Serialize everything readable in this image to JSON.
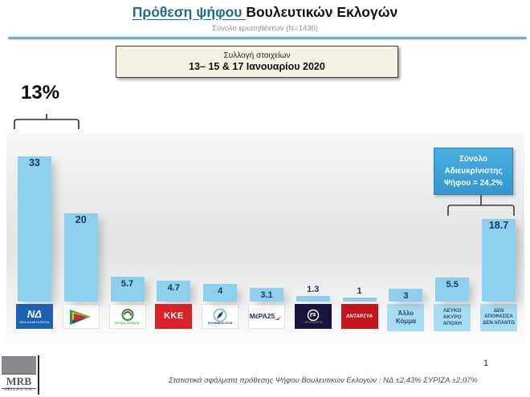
{
  "header": {
    "title_highlight": "Πρόθεση ψήφου ",
    "title_rest": "Βουλευτικών Εκλογών",
    "subtitle": "Σύνολο ερωτηθέντων (N=1436)"
  },
  "collection_box": {
    "line1": "Συλλογή στοιχείων",
    "line2": "13– 15 & 17 Ιανουαρίου 2020"
  },
  "annotations": {
    "lead_gap_label": "13%",
    "undecided_line1": "Σύνολο",
    "undecided_line2": "Αδιευκρίνιστης",
    "undecided_line3": "Ψήφου = 24,2%"
  },
  "chart_data": {
    "type": "bar",
    "title": "Πρόθεση ψήφου Βουλευτικών Εκλογών",
    "categories": [
      "ΝΔ ΝΕΑ ΔΗΜΟΚΡΑΤΙΑ",
      "ΣΥΡΙΖΑ",
      "ΚΙΝΗΜΑ ΑΛΛΑΓΗΣ",
      "ΚΚΕ",
      "ΕΛΛΗΝΙΚΗ ΛΥΣΗ",
      "ΜέΡΑ25",
      "ΧΡΥΣΗ ΑΥΓΗ",
      "ΑΝΤΑΡΣΥΑ",
      "Άλλο Κόμμα",
      "ΛΕΥΚΟ ΑΚΥΡΟ ΑΠΟΧΗ",
      "ΔΕΝ ΑΠΟΦΑΣΙΣΑ ΔΕΝ ΑΠΑΝΤΩ"
    ],
    "values": [
      33,
      20,
      5.7,
      4.7,
      4,
      3.1,
      1.3,
      1,
      3,
      5.5,
      18.7
    ],
    "labels": [
      "33",
      "20",
      "5.7",
      "4.7",
      "4",
      "3.1",
      "1.3",
      "1",
      "3",
      "5.5",
      "18.7"
    ],
    "bar_color": "#8DCFEC",
    "value_color": "#17375E",
    "ylim": [
      0,
      36
    ],
    "gridlines": false,
    "legend": false,
    "annotations": [
      {
        "text": "13%",
        "span_categories": [
          "ΝΔ ΝΕΑ ΔΗΜΟΚΡΑΤΙΑ",
          "ΣΥΡΙΖΑ"
        ]
      },
      {
        "text": "Σύνολο Αδιευκρίνιστης Ψήφου = 24,2%",
        "span_categories": [
          "ΛΕΥΚΟ ΑΚΥΡΟ ΑΠΟΧΗ",
          "ΔΕΝ ΑΠΟΦΑΣΙΣΑ ΔΕΝ ΑΠΑΝΤΩ"
        ]
      }
    ]
  },
  "parties": [
    {
      "id": "nd-logo",
      "logo": {
        "kind": "nd",
        "bg": "#1D61B4",
        "fg": "#FFFFFF",
        "main": "ΝΔ",
        "sub": "ΝΕΑ ΔΗΜΟΚΡΑΤΙΑ"
      }
    },
    {
      "id": "syriza-logo",
      "logo": {
        "kind": "syriza",
        "bg": "#FFFFFF",
        "colors": [
          "#2E9B43",
          "#F0C419",
          "#C8312B",
          "#2B4E9E"
        ]
      }
    },
    {
      "id": "kinal-logo",
      "logo": {
        "kind": "kinal",
        "bg": "#FFFFFF",
        "fg": "#2E9B43",
        "accent": "#D2302C",
        "sub": "κίνημα αλλαγής"
      }
    },
    {
      "id": "kke-logo",
      "logo": {
        "kind": "kke",
        "bg": "#DA2128",
        "fg": "#FFFFFF",
        "main": "ΚΚΕ"
      }
    },
    {
      "id": "elliniki-lysi-logo",
      "logo": {
        "kind": "ellysi",
        "bg": "#FFFFFF",
        "fg": "#1B3C6E",
        "accent": "#7EC8E8",
        "sub": "ΕΛΛΗΝΙΚΗ ΛΥΣΗ"
      }
    },
    {
      "id": "mera25-logo",
      "logo": {
        "kind": "mera25",
        "bg": "#FFFFFF",
        "fg": "#1F2D50",
        "accent": "#D2302C",
        "main": "ΜέΡΑ25"
      }
    },
    {
      "id": "xrysi-avgi-logo",
      "logo": {
        "kind": "xa",
        "bg": "#14143C",
        "fg": "#FFFFFF",
        "accent": "#C9B458",
        "sub": "ΧΡΥΣΗ ΑΥΓΗ"
      }
    },
    {
      "id": "antarsya-logo",
      "logo": {
        "kind": "antarsya",
        "bg": "#C4161C",
        "fg": "#FFFFFF",
        "main": "ΑΝΤΑΡΣΥΑ"
      }
    },
    {
      "id": "allo-komma-label",
      "logo": {
        "kind": "text",
        "bg": "#A9DCF2",
        "fg": "#1F4E79",
        "lines": [
          "Άλλο",
          "Κόμμα"
        ],
        "size": 8
      }
    },
    {
      "id": "leyko-akyro-apoxi-label",
      "logo": {
        "kind": "text",
        "bg": "#A9DCF2",
        "fg": "#1F4E79",
        "lines": [
          "ΛΕΥΚΟ",
          "ΑΚΥΡΟ",
          "ΑΠΟΧΗ"
        ],
        "size": 6.5
      }
    },
    {
      "id": "den-apofasisa-label",
      "logo": {
        "kind": "text",
        "bg": "#A9DCF2",
        "fg": "#1F4E79",
        "lines": [
          "ΔΕΝ",
          "ΑΠΟΦΑΣΙΣΑ",
          "ΔΕΝ ΑΠΑΝΤΩ"
        ],
        "size": 6
      }
    }
  ],
  "footer": {
    "stats_note": "Στατιστικά σφάλματα πρόθεσης Ψήφου Βουλευτικών Εκλογών : ΝΔ ±2,43% ΣΥΡΙΖΑ ±2,07%",
    "page_number": "1",
    "logo_main": "MRB",
    "logo_sub": "HELLAS S.A."
  }
}
